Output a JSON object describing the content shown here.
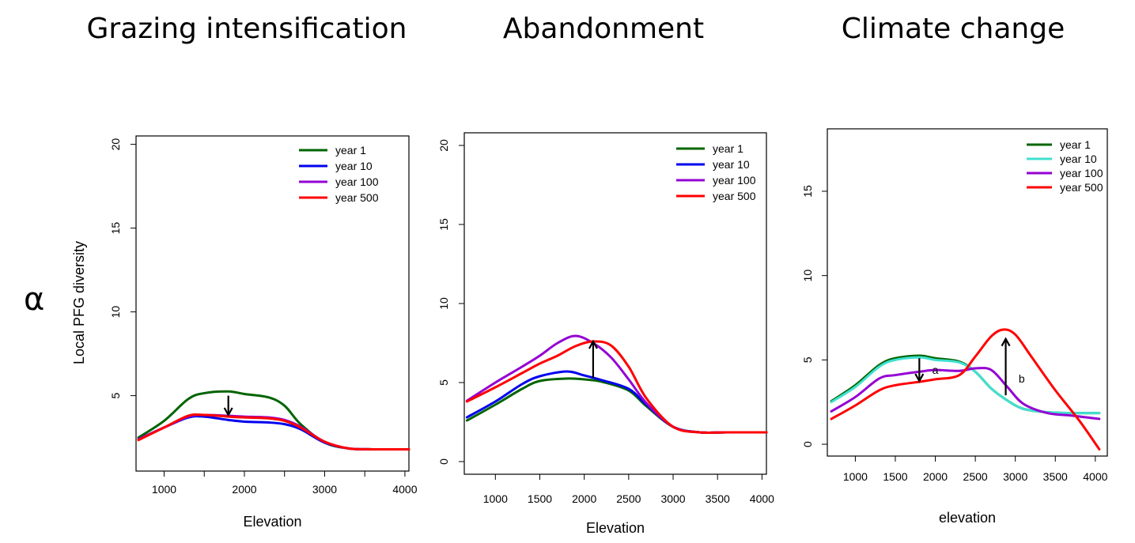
{
  "row_label": "α",
  "chart_data": [
    {
      "type": "line",
      "title": "Grazing intensification",
      "xlabel": "Elevation",
      "ylabel": "Local PFG diversity",
      "xlim": [
        650,
        4050
      ],
      "ylim": [
        0.5,
        20.5
      ],
      "xticks": [
        1000,
        1500,
        2000,
        2500,
        3000,
        3500,
        4000
      ],
      "xtick_labels": [
        "1000",
        "",
        "2000",
        "",
        "3000",
        "",
        "4000"
      ],
      "yticks": [
        5,
        10,
        15,
        20
      ],
      "ytick_labels": [
        "5",
        "10",
        "15",
        "20"
      ],
      "legend_position": "top-right",
      "series": [
        {
          "name": "year 1",
          "color": "#006400",
          "x": [
            680,
            1000,
            1300,
            1500,
            1800,
            2000,
            2300,
            2500,
            2700,
            3000,
            3300,
            3600,
            4050
          ],
          "y": [
            2.5,
            3.5,
            4.8,
            5.15,
            5.25,
            5.1,
            4.9,
            4.4,
            3.3,
            2.2,
            1.85,
            1.8,
            1.8
          ]
        },
        {
          "name": "year 10",
          "color": "#0000ee",
          "x": [
            680,
            1000,
            1300,
            1500,
            1800,
            2000,
            2300,
            2500,
            2700,
            3000,
            3300,
            3600,
            4050
          ],
          "y": [
            2.4,
            3.1,
            3.7,
            3.75,
            3.55,
            3.45,
            3.4,
            3.3,
            3.0,
            2.2,
            1.85,
            1.8,
            1.8
          ]
        },
        {
          "name": "year 100",
          "color": "#9400d3",
          "x": [
            680,
            1000,
            1300,
            1500,
            1800,
            2000,
            2300,
            2500,
            2700,
            3000,
            3300,
            3600,
            4050
          ],
          "y": [
            2.4,
            3.1,
            3.75,
            3.85,
            3.8,
            3.75,
            3.7,
            3.55,
            3.15,
            2.25,
            1.85,
            1.8,
            1.8
          ]
        },
        {
          "name": "year 500",
          "color": "#ff0000",
          "x": [
            680,
            1000,
            1300,
            1500,
            1800,
            2000,
            2300,
            2500,
            2700,
            3000,
            3300,
            3600,
            4050
          ],
          "y": [
            2.35,
            3.1,
            3.8,
            3.85,
            3.75,
            3.7,
            3.65,
            3.5,
            3.1,
            2.25,
            1.85,
            1.8,
            1.8
          ]
        }
      ],
      "arrows": [
        {
          "x": 1800,
          "y_from": 5.0,
          "y_to": 3.85
        }
      ]
    },
    {
      "type": "line",
      "title": "Abandonment",
      "xlabel": "Elevation",
      "ylabel": "",
      "xlim": [
        650,
        4050
      ],
      "ylim": [
        -0.8,
        20.8
      ],
      "xticks": [
        1000,
        1500,
        2000,
        2500,
        3000,
        3500,
        4000
      ],
      "xtick_labels": [
        "1000",
        "1500",
        "2000",
        "2500",
        "3000",
        "3500",
        "4000"
      ],
      "yticks": [
        0,
        5,
        10,
        15,
        20
      ],
      "ytick_labels": [
        "0",
        "5",
        "10",
        "15",
        "20"
      ],
      "legend_position": "top-right",
      "series": [
        {
          "name": "year 1",
          "color": "#006400",
          "x": [
            680,
            1000,
            1300,
            1500,
            1800,
            2000,
            2200,
            2500,
            2700,
            3000,
            3300,
            3600,
            4050
          ],
          "y": [
            2.6,
            3.6,
            4.6,
            5.1,
            5.25,
            5.2,
            5.05,
            4.5,
            3.5,
            2.2,
            1.85,
            1.85,
            1.85
          ]
        },
        {
          "name": "year 10",
          "color": "#0000ee",
          "x": [
            680,
            1000,
            1300,
            1500,
            1800,
            2000,
            2200,
            2500,
            2700,
            3000,
            3300,
            3600,
            4050
          ],
          "y": [
            2.8,
            3.8,
            4.9,
            5.4,
            5.7,
            5.45,
            5.15,
            4.6,
            3.6,
            2.2,
            1.85,
            1.85,
            1.85
          ]
        },
        {
          "name": "year 100",
          "color": "#9400d3",
          "x": [
            680,
            1000,
            1300,
            1500,
            1700,
            1900,
            2100,
            2300,
            2500,
            2700,
            3000,
            3300,
            3600,
            4050
          ],
          "y": [
            3.85,
            5.0,
            6.0,
            6.7,
            7.5,
            7.95,
            7.5,
            6.6,
            5.2,
            3.7,
            2.2,
            1.85,
            1.85,
            1.85
          ]
        },
        {
          "name": "year 500",
          "color": "#ff0000",
          "x": [
            680,
            1000,
            1300,
            1500,
            1700,
            1900,
            2100,
            2300,
            2500,
            2700,
            3000,
            3300,
            3600,
            4050
          ],
          "y": [
            3.8,
            4.7,
            5.6,
            6.2,
            6.7,
            7.3,
            7.6,
            7.35,
            6.0,
            4.0,
            2.2,
            1.85,
            1.85,
            1.85
          ]
        }
      ],
      "arrows": [
        {
          "x": 2100,
          "y_from": 5.3,
          "y_to": 7.6
        }
      ]
    },
    {
      "type": "line",
      "title": "Climate change",
      "xlabel": "elevation",
      "ylabel": "",
      "xlim": [
        650,
        4150
      ],
      "ylim": [
        -0.7,
        18.7
      ],
      "xticks": [
        1000,
        1500,
        2000,
        2500,
        3000,
        3500,
        4000
      ],
      "xtick_labels": [
        "1000",
        "1500",
        "2000",
        "2500",
        "3000",
        "3500",
        "4000"
      ],
      "yticks": [
        0,
        5,
        10,
        15
      ],
      "ytick_labels": [
        "0",
        "5",
        "10",
        "15"
      ],
      "legend_position": "top-right",
      "series": [
        {
          "name": "year 1",
          "color": "#006400",
          "x": [
            700,
            1000,
            1300,
            1500,
            1800,
            2000,
            2300,
            2500,
            2700,
            2900,
            3100,
            3400,
            3700,
            4050
          ],
          "y": [
            2.55,
            3.5,
            4.7,
            5.1,
            5.25,
            5.1,
            4.9,
            4.3,
            3.3,
            2.6,
            2.1,
            1.9,
            1.85,
            1.85
          ]
        },
        {
          "name": "year 10",
          "color": "#40e0d0",
          "x": [
            700,
            1000,
            1300,
            1500,
            1800,
            2000,
            2300,
            2500,
            2700,
            2900,
            3100,
            3400,
            3700,
            4050
          ],
          "y": [
            2.5,
            3.4,
            4.6,
            5.0,
            5.15,
            5.0,
            4.85,
            4.3,
            3.3,
            2.6,
            2.1,
            1.9,
            1.85,
            1.85
          ]
        },
        {
          "name": "year 100",
          "color": "#9400d3",
          "x": [
            700,
            1000,
            1300,
            1500,
            1800,
            2000,
            2300,
            2500,
            2700,
            2900,
            3100,
            3400,
            3700,
            4050
          ],
          "y": [
            1.95,
            2.8,
            3.9,
            4.1,
            4.3,
            4.4,
            4.35,
            4.5,
            4.4,
            3.4,
            2.4,
            1.85,
            1.7,
            1.5
          ]
        },
        {
          "name": "year 500",
          "color": "#ff0000",
          "x": [
            700,
            1000,
            1300,
            1500,
            1800,
            2000,
            2300,
            2500,
            2700,
            2850,
            3000,
            3200,
            3500,
            3800,
            4050
          ],
          "y": [
            1.5,
            2.3,
            3.2,
            3.5,
            3.7,
            3.85,
            4.1,
            5.2,
            6.4,
            6.8,
            6.5,
            5.2,
            3.2,
            1.4,
            -0.3
          ]
        }
      ],
      "arrows": [
        {
          "x": 1800,
          "y_from": 5.1,
          "y_to": 3.75
        },
        {
          "x": 2880,
          "y_from": 2.9,
          "y_to": 6.25
        }
      ],
      "annotations": [
        {
          "text": "a",
          "x": 2000,
          "y": 4.4
        },
        {
          "text": "b",
          "x": 3080,
          "y": 3.9
        }
      ]
    }
  ]
}
